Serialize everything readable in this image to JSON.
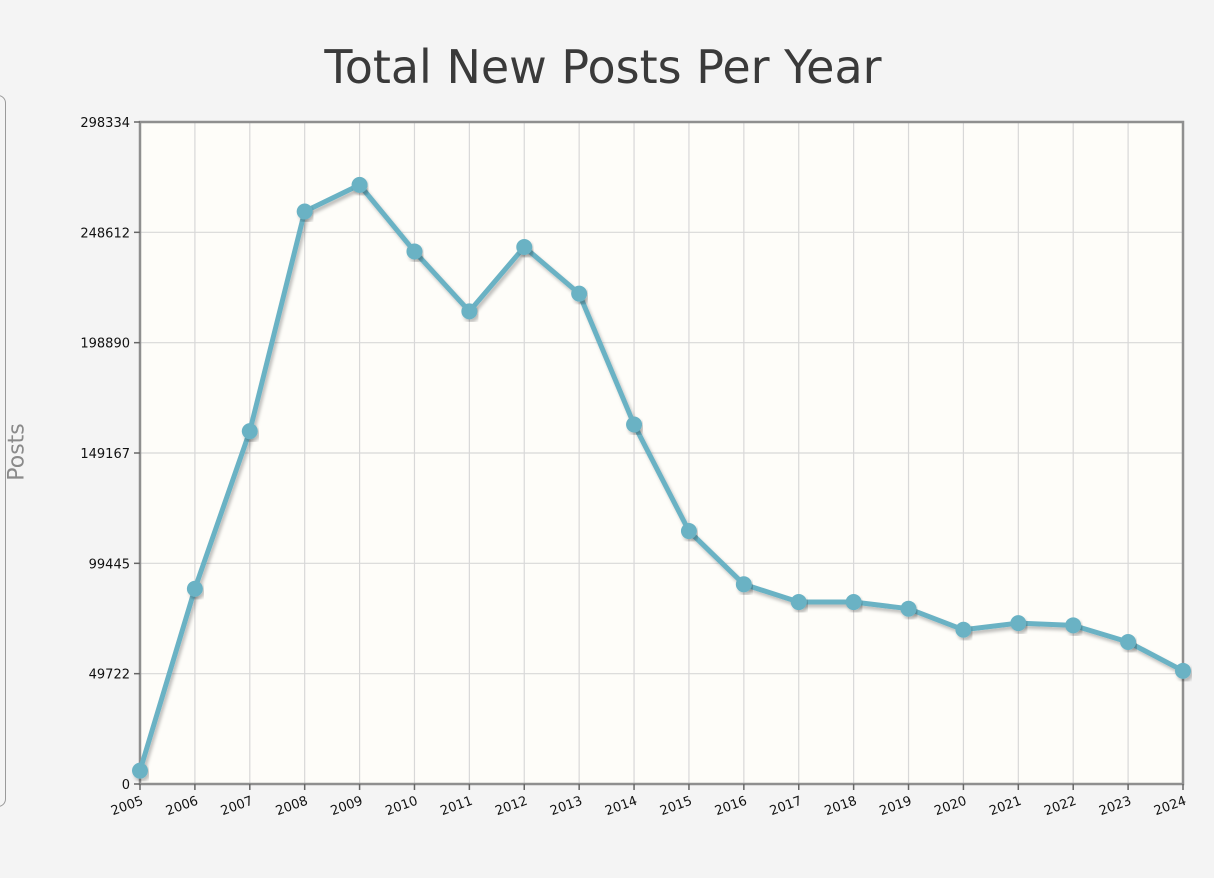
{
  "chart_data": {
    "type": "line",
    "title": "Total New Posts Per Year",
    "xlabel": "",
    "ylabel": "Posts",
    "ylim": [
      0,
      298334
    ],
    "yticks": [
      "0",
      "49722",
      "99445",
      "149167",
      "198890",
      "248612",
      "298334"
    ],
    "ytick_values": [
      0,
      49722,
      99445,
      149167,
      198890,
      248612,
      298334
    ],
    "grid": true,
    "categories": [
      "2005",
      "2006",
      "2007",
      "2008",
      "2009",
      "2010",
      "2011",
      "2012",
      "2013",
      "2014",
      "2015",
      "2016",
      "2017",
      "2018",
      "2019",
      "2020",
      "2021",
      "2022",
      "2023",
      "2024"
    ],
    "series": [
      {
        "values": [
          6000,
          88000,
          159000,
          258000,
          270000,
          240000,
          213000,
          242000,
          221000,
          162000,
          114000,
          90000,
          82000,
          82000,
          79000,
          69500,
          72500,
          71500,
          64000,
          51000
        ],
        "color": "#6bb2c4"
      }
    ],
    "colors": {
      "line": "#6bb2c4",
      "marker": "#6bb2c4",
      "plot_bg": "#fefdf9",
      "grid": "#d8d8d8",
      "frame": "#8f8f8f"
    }
  }
}
